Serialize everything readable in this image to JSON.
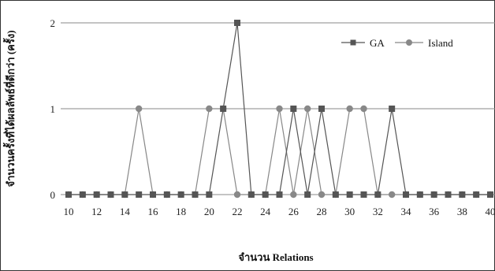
{
  "chart_data": {
    "type": "line",
    "title": "",
    "xlabel": "จำนวน Relations",
    "ylabel": "จำนวนครั้งที่ได้ผลลัพธ์ที่ดีกว่า (ครั้ง)",
    "x": [
      10,
      11,
      12,
      13,
      14,
      15,
      16,
      17,
      18,
      19,
      20,
      21,
      22,
      23,
      24,
      25,
      26,
      27,
      28,
      29,
      30,
      31,
      32,
      33,
      34,
      35,
      36,
      37,
      38,
      39,
      40
    ],
    "x_tick_labels": [
      "10",
      "12",
      "14",
      "16",
      "18",
      "20",
      "22",
      "24",
      "26",
      "28",
      "30",
      "32",
      "34",
      "36",
      "38",
      "40"
    ],
    "y_tick_labels": [
      "0",
      "1",
      "2"
    ],
    "ylim": [
      0,
      2
    ],
    "grid": "horizontal",
    "legend_position": "top-right",
    "series": [
      {
        "name": "GA",
        "marker": "square",
        "color": "#555555",
        "values": [
          0,
          0,
          0,
          0,
          0,
          0,
          0,
          0,
          0,
          0,
          0,
          1,
          2,
          0,
          0,
          0,
          1,
          0,
          1,
          0,
          0,
          0,
          0,
          1,
          0,
          0,
          0,
          0,
          0,
          0,
          0
        ]
      },
      {
        "name": "Island",
        "marker": "circle",
        "color": "#888888",
        "values": [
          0,
          0,
          0,
          0,
          0,
          1,
          0,
          0,
          0,
          0,
          1,
          1,
          0,
          0,
          0,
          1,
          0,
          1,
          0,
          0,
          1,
          1,
          0,
          0,
          0,
          0,
          0,
          0,
          0,
          0,
          0
        ]
      }
    ]
  }
}
